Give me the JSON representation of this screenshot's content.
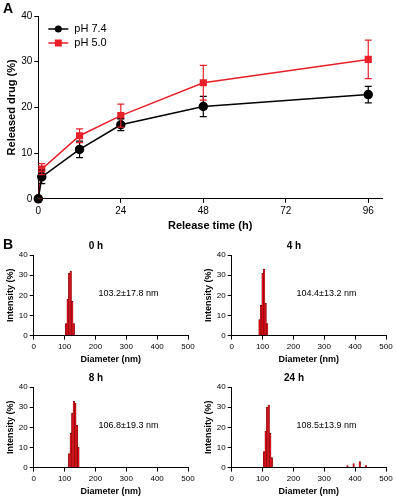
{
  "chart_data": [
    {
      "panel": "A",
      "type": "line",
      "x_label": "Release time (h)",
      "y_label": "Released drug (%)",
      "x": [
        0,
        1,
        12,
        24,
        48,
        96
      ],
      "series": [
        {
          "name": "pH 7.4",
          "color": "#000000",
          "marker": "circle",
          "values": [
            0,
            4.8,
            10.8,
            16.2,
            20.2,
            22.8
          ],
          "errors": [
            0,
            1.5,
            1.8,
            1.3,
            2.2,
            1.8
          ]
        },
        {
          "name": "pH 5.0",
          "color": "#e8202a",
          "marker": "square",
          "values": [
            0,
            6.5,
            13.8,
            18.2,
            25.4,
            30.5
          ],
          "errors": [
            0,
            1.2,
            1.5,
            2.5,
            3.8,
            4.2
          ]
        }
      ],
      "xlim": [
        0,
        100
      ],
      "xticks": [
        0,
        24,
        48,
        72,
        96
      ],
      "ylim": [
        0,
        40
      ],
      "yticks": [
        0,
        10,
        20,
        30,
        40
      ],
      "grid": false,
      "legend": "upper left"
    },
    {
      "panel": "B",
      "type": "bar",
      "title": "0 h",
      "x_label": "Diameter (nm)",
      "y_label": "Intensity (%)",
      "x": [
        105,
        110,
        115,
        120,
        125,
        130
      ],
      "values": [
        6,
        18,
        31,
        32,
        17,
        6
      ],
      "annotation": "103.2±17.8 nm",
      "color": "#e3000f",
      "xlim": [
        0,
        500
      ],
      "xticks": [
        0,
        100,
        200,
        300,
        400,
        500
      ],
      "ylim": [
        0,
        40
      ],
      "yticks": [
        0,
        10,
        20,
        30,
        40
      ],
      "grid": false
    },
    {
      "type": "bar",
      "title": "4 h",
      "x_label": "Diameter (nm)",
      "y_label": "Intensity (%)",
      "x": [
        90,
        95,
        100,
        105,
        110,
        115
      ],
      "values": [
        8,
        15,
        31,
        33,
        16,
        6
      ],
      "annotation": "104.4±13.2 nm",
      "color": "#e3000f",
      "xlim": [
        0,
        500
      ],
      "xticks": [
        0,
        100,
        200,
        300,
        400,
        500
      ],
      "ylim": [
        0,
        40
      ],
      "yticks": [
        0,
        10,
        20,
        30,
        40
      ],
      "grid": false
    },
    {
      "type": "bar",
      "title": "8 h",
      "x_label": "Diameter (nm)",
      "y_label": "Intensity (%)",
      "x": [
        115,
        120,
        125,
        130,
        135,
        140,
        145
      ],
      "values": [
        7,
        17,
        27,
        33,
        32,
        21,
        10
      ],
      "annotation": "106.8±19.3 nm",
      "color": "#e3000f",
      "xlim": [
        0,
        500
      ],
      "xticks": [
        0,
        100,
        200,
        300,
        400,
        500
      ],
      "ylim": [
        0,
        40
      ],
      "yticks": [
        0,
        10,
        20,
        30,
        40
      ],
      "grid": false
    },
    {
      "type": "bar",
      "title": "24 h",
      "x_label": "Diameter (nm)",
      "y_label": "Intensity (%)",
      "x": [
        105,
        110,
        115,
        120,
        125,
        130,
        375,
        395,
        415,
        435
      ],
      "values": [
        8,
        18,
        30,
        31,
        17,
        5,
        1,
        2,
        3,
        1
      ],
      "annotation": "108.5±13.9 nm",
      "color": "#e3000f",
      "xlim": [
        0,
        500
      ],
      "xticks": [
        0,
        100,
        200,
        300,
        400,
        500
      ],
      "ylim": [
        0,
        40
      ],
      "yticks": [
        0,
        10,
        20,
        30,
        40
      ],
      "grid": false
    }
  ]
}
